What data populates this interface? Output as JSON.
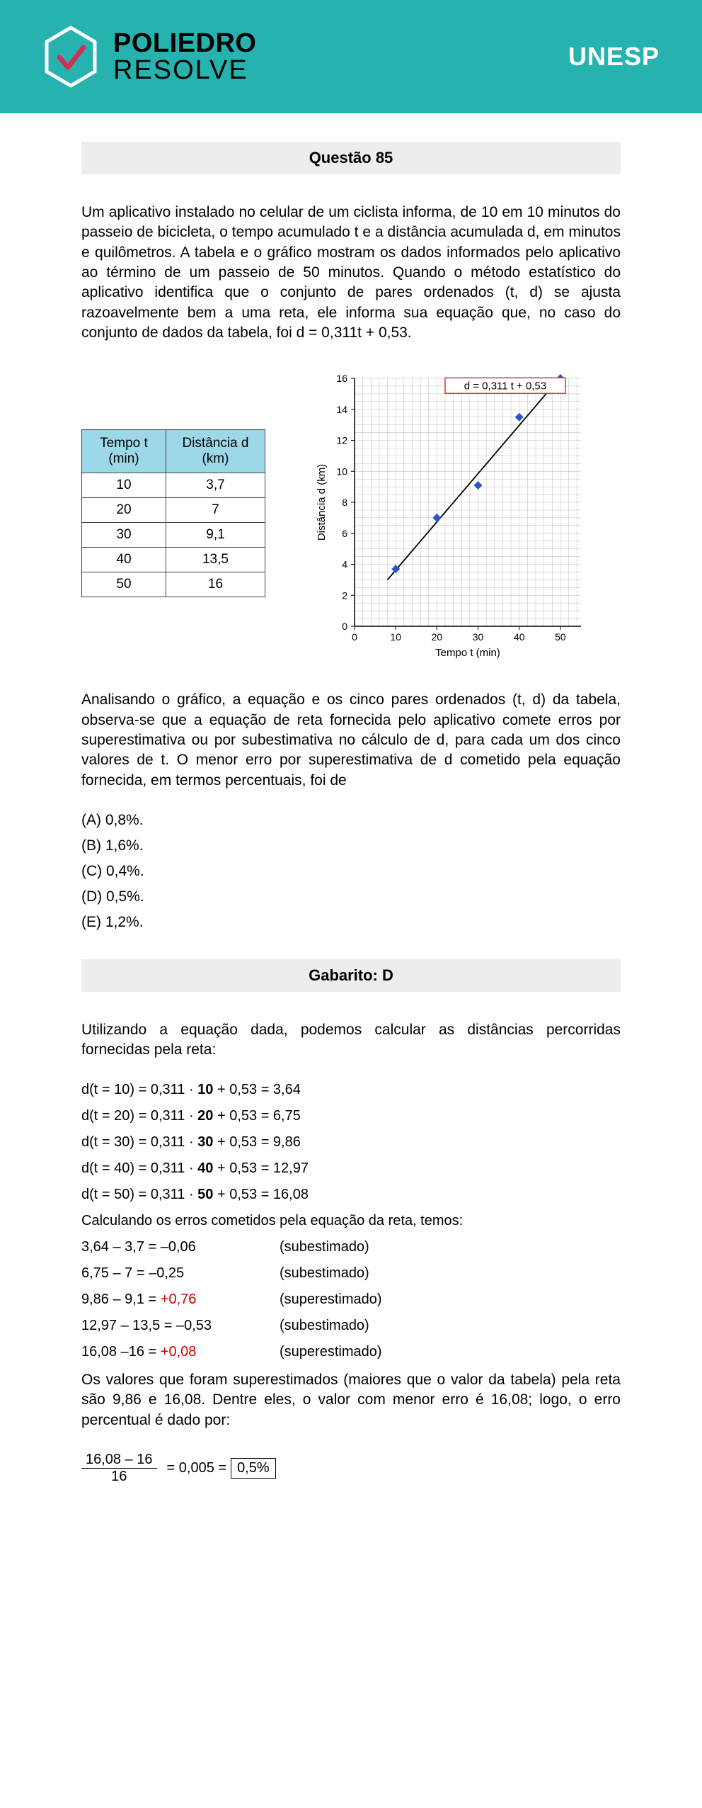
{
  "header": {
    "brand_top": "POLIEDRO",
    "brand_bot": "RESOLVE",
    "exam": "UNESP",
    "hex_stroke": "#ffffff",
    "check_stroke": "#d32f56"
  },
  "question": {
    "title": "Questão 85",
    "p1": "Um aplicativo instalado no celular de um ciclista informa, de 10 em 10 minutos do passeio de bicicleta, o tempo acumulado t e a distância acumulada d, em minutos e quilômetros. A tabela e o gráfico mostram os dados informados pelo aplicativo ao término de um passeio de 50 minutos. Quando o método estatístico do aplicativo identifica que o conjunto de pares ordenados (t, d) se ajusta razoavelmente bem a uma reta, ele informa sua equação que, no caso do conjunto de dados da tabela, foi d = 0,311t + 0,53.",
    "p2": "Analisando o gráfico, a equação e os cinco pares ordenados (t, d) da tabela, observa-se que a equação de reta fornecida pelo aplicativo comete erros por superestimativa ou por subestimativa no cálculo de d, para cada um dos cinco valores de t. O menor erro por superestimativa de d cometido pela equação fornecida, em termos percentuais, foi de"
  },
  "table": {
    "h1": "Tempo t (min)",
    "h2": "Distância d (km)",
    "rows": [
      {
        "t": "10",
        "d": "3,7"
      },
      {
        "t": "20",
        "d": "7"
      },
      {
        "t": "30",
        "d": "9,1"
      },
      {
        "t": "40",
        "d": "13,5"
      },
      {
        "t": "50",
        "d": "16"
      }
    ]
  },
  "chart": {
    "eq_label": "d = 0,311 t + 0,53",
    "y_label": "Distância d (km)",
    "x_label": "Tempo t (min)",
    "x_ticks": [
      "0",
      "10",
      "20",
      "30",
      "40",
      "50"
    ],
    "y_ticks": [
      "0",
      "2",
      "4",
      "6",
      "8",
      "10",
      "12",
      "14",
      "16"
    ],
    "xlim": [
      0,
      55
    ],
    "ylim": [
      0,
      16
    ],
    "points": [
      {
        "x": 10,
        "y": 3.7
      },
      {
        "x": 20,
        "y": 7
      },
      {
        "x": 30,
        "y": 9.1
      },
      {
        "x": 40,
        "y": 13.5
      },
      {
        "x": 50,
        "y": 16
      }
    ],
    "line": {
      "x1": 8,
      "y1": 3.0,
      "x2": 50,
      "y2": 16.08
    },
    "colors": {
      "grid": "#bababa",
      "marker": "#2b56c6",
      "eq_box": "#d23a3a",
      "axis": "#000"
    }
  },
  "options": {
    "a": "(A) 0,8%.",
    "b": "(B) 1,6%.",
    "c": "(C) 0,4%.",
    "d": "(D) 0,5%.",
    "e": "(E) 1,2%."
  },
  "gabarito": "Gabarito: D",
  "solution": {
    "intro": "Utilizando a equação dada, podemos calcular as distâncias percorridas fornecidas pela reta:",
    "calc": [
      {
        "pre": "d(t = 10) = 0,311 · ",
        "b": "10",
        "post": " + 0,53 = 3,64"
      },
      {
        "pre": "d(t = 20) = 0,311 · ",
        "b": "20",
        "post": " + 0,53 = 6,75"
      },
      {
        "pre": "d(t = 30) = 0,311 · ",
        "b": "30",
        "post": " + 0,53 = 9,86"
      },
      {
        "pre": "d(t = 40) = 0,311 · ",
        "b": "40",
        "post": " + 0,53 = 12,97"
      },
      {
        "pre": "d(t = 50) = 0,311 · ",
        "b": "50",
        "post": " + 0,53 = 16,08"
      }
    ],
    "err_intro": "Calculando os erros cometidos pela equação da reta, temos:",
    "errors": [
      {
        "l": "3,64 – 3,7 = –0,06",
        "r": "(subestimado)",
        "red": false
      },
      {
        "l": "6,75 – 7 = –0,25",
        "r": "(subestimado)",
        "red": false
      },
      {
        "l": "9,86 – 9,1 = +0,76",
        "r": "(superestimado)",
        "red": true
      },
      {
        "l": "12,97 – 13,5 = –0,53",
        "r": "(subestimado)",
        "red": false
      },
      {
        "l": "16,08 –16 = +0,08",
        "r": "(superestimado)",
        "red": true
      }
    ],
    "concl": "Os valores que foram superestimados (maiores que o valor da tabela) pela reta são 9,86 e 16,08. Dentre eles, o valor com menor erro é 16,08; logo, o erro percentual é dado por:",
    "frac_num": "16,08 – 16",
    "frac_den": "16",
    "frac_eq": "= 0,005 =",
    "boxed": "0,5%"
  }
}
